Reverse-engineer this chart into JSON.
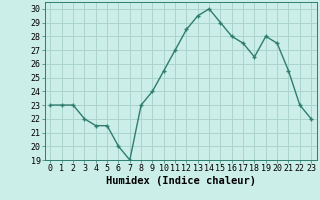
{
  "x": [
    0,
    1,
    2,
    3,
    4,
    5,
    6,
    7,
    8,
    9,
    10,
    11,
    12,
    13,
    14,
    15,
    16,
    17,
    18,
    19,
    20,
    21,
    22,
    23
  ],
  "y": [
    23,
    23,
    23,
    22,
    21.5,
    21.5,
    20,
    19,
    23,
    24,
    25.5,
    27,
    28.5,
    29.5,
    30,
    29,
    28,
    27.5,
    26.5,
    28,
    27.5,
    25.5,
    23,
    22
  ],
  "line_color": "#2e7d6e",
  "marker": "+",
  "marker_size": 3.5,
  "marker_lw": 1.0,
  "bg_color": "#cceee8",
  "grid_color": "#aad4cc",
  "xlabel": "Humidex (Indice chaleur)",
  "xlabel_fontsize": 7.5,
  "tick_fontsize": 6,
  "ylim": [
    19,
    30.5
  ],
  "yticks": [
    19,
    20,
    21,
    22,
    23,
    24,
    25,
    26,
    27,
    28,
    29,
    30
  ],
  "xticks": [
    0,
    1,
    2,
    3,
    4,
    5,
    6,
    7,
    8,
    9,
    10,
    11,
    12,
    13,
    14,
    15,
    16,
    17,
    18,
    19,
    20,
    21,
    22,
    23
  ],
  "line_width": 1.0
}
